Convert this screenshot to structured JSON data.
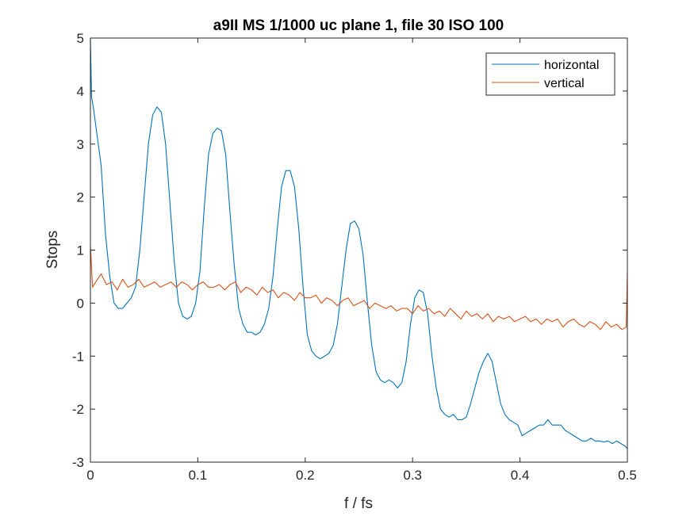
{
  "chart_data": {
    "type": "line",
    "title": "a9II MS 1/1000 uc plane 1, file 30 ISO 100",
    "xlabel": "f / fs",
    "ylabel": "Stops",
    "xlim": [
      0,
      0.5
    ],
    "ylim": [
      -3,
      5
    ],
    "xticks": [
      0,
      0.1,
      0.2,
      0.3,
      0.4,
      0.5
    ],
    "xtick_labels": [
      "0",
      "0.1",
      "0.2",
      "0.3",
      "0.4",
      "0.5"
    ],
    "yticks": [
      -3,
      -2,
      -1,
      0,
      1,
      2,
      3,
      4,
      5
    ],
    "ytick_labels": [
      "-3",
      "-2",
      "-1",
      "0",
      "1",
      "2",
      "3",
      "4",
      "5"
    ],
    "grid": false,
    "legend_position": "top-right",
    "series": [
      {
        "name": "horizontal",
        "color": "#0072BD",
        "x": [
          0,
          0.001,
          0.003,
          0.006,
          0.01,
          0.014,
          0.018,
          0.022,
          0.026,
          0.03,
          0.034,
          0.038,
          0.042,
          0.046,
          0.05,
          0.054,
          0.058,
          0.062,
          0.066,
          0.07,
          0.074,
          0.078,
          0.082,
          0.086,
          0.09,
          0.094,
          0.098,
          0.102,
          0.106,
          0.11,
          0.114,
          0.118,
          0.122,
          0.126,
          0.13,
          0.134,
          0.138,
          0.142,
          0.146,
          0.15,
          0.154,
          0.158,
          0.162,
          0.166,
          0.17,
          0.174,
          0.178,
          0.182,
          0.186,
          0.19,
          0.194,
          0.198,
          0.202,
          0.206,
          0.21,
          0.214,
          0.218,
          0.222,
          0.226,
          0.23,
          0.234,
          0.238,
          0.242,
          0.246,
          0.25,
          0.254,
          0.258,
          0.262,
          0.266,
          0.27,
          0.274,
          0.278,
          0.282,
          0.286,
          0.29,
          0.294,
          0.298,
          0.302,
          0.306,
          0.31,
          0.314,
          0.318,
          0.322,
          0.326,
          0.33,
          0.334,
          0.338,
          0.342,
          0.346,
          0.35,
          0.354,
          0.358,
          0.362,
          0.366,
          0.37,
          0.374,
          0.378,
          0.382,
          0.386,
          0.39,
          0.394,
          0.398,
          0.402,
          0.406,
          0.41,
          0.414,
          0.418,
          0.422,
          0.426,
          0.43,
          0.434,
          0.438,
          0.442,
          0.446,
          0.45,
          0.454,
          0.458,
          0.462,
          0.466,
          0.47,
          0.474,
          0.478,
          0.482,
          0.486,
          0.49,
          0.494,
          0.498,
          0.5
        ],
        "values": [
          5.0,
          3.9,
          3.65,
          3.2,
          2.6,
          1.3,
          0.5,
          0.0,
          -0.1,
          -0.1,
          0.0,
          0.1,
          0.3,
          1.0,
          2.0,
          3.0,
          3.55,
          3.7,
          3.6,
          3.0,
          1.9,
          0.8,
          0.0,
          -0.25,
          -0.3,
          -0.25,
          0.0,
          0.6,
          1.8,
          2.8,
          3.2,
          3.3,
          3.25,
          2.8,
          1.7,
          0.7,
          -0.1,
          -0.4,
          -0.55,
          -0.55,
          -0.6,
          -0.55,
          -0.4,
          -0.1,
          0.5,
          1.4,
          2.2,
          2.5,
          2.5,
          2.2,
          1.4,
          0.3,
          -0.6,
          -0.9,
          -1.0,
          -1.05,
          -1.0,
          -0.95,
          -0.8,
          -0.4,
          0.3,
          1.0,
          1.5,
          1.55,
          1.4,
          0.9,
          0.0,
          -0.8,
          -1.3,
          -1.45,
          -1.5,
          -1.45,
          -1.5,
          -1.6,
          -1.5,
          -1.1,
          -0.4,
          0.1,
          0.25,
          0.2,
          -0.2,
          -1.0,
          -1.6,
          -2.0,
          -2.1,
          -2.15,
          -2.1,
          -2.2,
          -2.2,
          -2.15,
          -1.9,
          -1.6,
          -1.3,
          -1.1,
          -0.95,
          -1.1,
          -1.5,
          -1.9,
          -2.1,
          -2.2,
          -2.25,
          -2.3,
          -2.5,
          -2.45,
          -2.4,
          -2.35,
          -2.3,
          -2.3,
          -2.2,
          -2.3,
          -2.3,
          -2.3,
          -2.4,
          -2.45,
          -2.5,
          -2.55,
          -2.6,
          -2.6,
          -2.55,
          -2.6,
          -2.6,
          -2.62,
          -2.6,
          -2.65,
          -2.6,
          -2.65,
          -2.7,
          -2.75
        ]
      },
      {
        "name": "vertical",
        "color": "#D95319",
        "x": [
          0,
          0.002,
          0.005,
          0.01,
          0.015,
          0.02,
          0.025,
          0.03,
          0.035,
          0.04,
          0.045,
          0.05,
          0.055,
          0.06,
          0.065,
          0.07,
          0.075,
          0.08,
          0.085,
          0.09,
          0.095,
          0.1,
          0.105,
          0.11,
          0.115,
          0.12,
          0.125,
          0.13,
          0.135,
          0.14,
          0.145,
          0.15,
          0.155,
          0.16,
          0.165,
          0.17,
          0.175,
          0.18,
          0.185,
          0.19,
          0.195,
          0.2,
          0.205,
          0.21,
          0.215,
          0.22,
          0.225,
          0.23,
          0.235,
          0.24,
          0.245,
          0.25,
          0.255,
          0.26,
          0.265,
          0.27,
          0.275,
          0.28,
          0.285,
          0.29,
          0.295,
          0.3,
          0.305,
          0.31,
          0.315,
          0.32,
          0.325,
          0.33,
          0.335,
          0.34,
          0.345,
          0.35,
          0.355,
          0.36,
          0.365,
          0.37,
          0.375,
          0.38,
          0.385,
          0.39,
          0.395,
          0.4,
          0.405,
          0.41,
          0.415,
          0.42,
          0.425,
          0.43,
          0.435,
          0.44,
          0.445,
          0.45,
          0.455,
          0.46,
          0.465,
          0.47,
          0.475,
          0.48,
          0.485,
          0.49,
          0.495,
          0.499,
          0.5
        ],
        "values": [
          1.1,
          0.3,
          0.4,
          0.55,
          0.35,
          0.4,
          0.25,
          0.45,
          0.3,
          0.35,
          0.45,
          0.3,
          0.35,
          0.4,
          0.3,
          0.35,
          0.4,
          0.3,
          0.4,
          0.35,
          0.25,
          0.35,
          0.4,
          0.3,
          0.3,
          0.35,
          0.25,
          0.35,
          0.4,
          0.2,
          0.3,
          0.25,
          0.15,
          0.3,
          0.2,
          0.25,
          0.1,
          0.2,
          0.15,
          0.05,
          0.2,
          0.1,
          0.1,
          0.15,
          0.0,
          0.1,
          0.05,
          -0.05,
          0.05,
          0.1,
          -0.05,
          0.0,
          0.05,
          -0.1,
          0.0,
          -0.05,
          -0.1,
          -0.05,
          -0.15,
          -0.1,
          -0.1,
          -0.2,
          -0.05,
          -0.15,
          -0.1,
          -0.2,
          -0.15,
          -0.25,
          -0.1,
          -0.2,
          -0.3,
          -0.15,
          -0.25,
          -0.2,
          -0.3,
          -0.2,
          -0.35,
          -0.25,
          -0.3,
          -0.25,
          -0.35,
          -0.3,
          -0.25,
          -0.35,
          -0.3,
          -0.4,
          -0.3,
          -0.35,
          -0.3,
          -0.45,
          -0.35,
          -0.3,
          -0.4,
          -0.45,
          -0.35,
          -0.4,
          -0.5,
          -0.35,
          -0.45,
          -0.4,
          -0.5,
          -0.45,
          0.6
        ]
      }
    ]
  }
}
